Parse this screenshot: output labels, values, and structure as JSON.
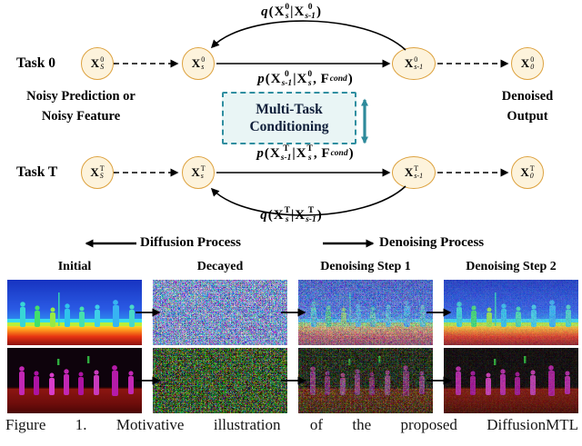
{
  "diagram": {
    "task0_label": "Task 0",
    "taskT_label": "Task T",
    "left_note": {
      "line1": "Noisy Prediction or",
      "line2": "Noisy Feature"
    },
    "right_note": {
      "line1": "Denoised",
      "line2": "Output"
    },
    "conditioning_box": {
      "line1": "Multi-Task",
      "line2": "Conditioning"
    },
    "nodes": {
      "task0": [
        {
          "t": "X",
          "sup": "0",
          "sub": "S"
        },
        {
          "t": "X",
          "sup": "0",
          "sub": "s"
        },
        {
          "t": "X",
          "sup": "0",
          "sub": "s-1"
        },
        {
          "t": "X",
          "sup": "0",
          "sub": "0"
        }
      ],
      "taskT": [
        {
          "t": "X",
          "sup": "T",
          "sub": "S"
        },
        {
          "t": "X",
          "sup": "T",
          "sub": "s"
        },
        {
          "t": "X",
          "sup": "T",
          "sub": "s-1"
        },
        {
          "t": "X",
          "sup": "T",
          "sub": "0"
        }
      ]
    },
    "formulas": {
      "q_task0": [
        {
          "t": "q",
          "i": true
        },
        {
          "t": "("
        },
        {
          "t": "X",
          "sup": "0",
          "sub": "s"
        },
        {
          "t": "|"
        },
        {
          "t": "X",
          "sup": "0",
          "sub": "s-1"
        },
        {
          "t": ")"
        }
      ],
      "p_task0": [
        {
          "t": "p",
          "i": true
        },
        {
          "t": "("
        },
        {
          "t": "X",
          "sup": "0",
          "sub": "s-1"
        },
        {
          "t": "|"
        },
        {
          "t": "X",
          "sup": "0",
          "sub": "s"
        },
        {
          "t": ", "
        },
        {
          "t": "F",
          "sub": "cond"
        },
        {
          "t": ")"
        }
      ],
      "p_taskT": [
        {
          "t": "p",
          "i": true
        },
        {
          "t": "("
        },
        {
          "t": "X",
          "sup": "T",
          "sub": "s-1"
        },
        {
          "t": "|"
        },
        {
          "t": "X",
          "sup": "T",
          "sub": "s"
        },
        {
          "t": ", "
        },
        {
          "t": "F",
          "sub": "cond"
        },
        {
          "t": ")"
        }
      ],
      "q_taskT": [
        {
          "t": "q",
          "i": true
        },
        {
          "t": "("
        },
        {
          "t": "X",
          "sup": "T",
          "sub": "s"
        },
        {
          "t": "|"
        },
        {
          "t": "X",
          "sup": "T",
          "sub": "s-1"
        },
        {
          "t": ")"
        }
      ]
    }
  },
  "legend": {
    "diffusion": "Diffusion Process",
    "denoising": "Denoising Process"
  },
  "grid": {
    "columns": [
      "Initial",
      "Decayed",
      "Denoising Step 1",
      "Denoising Step 2"
    ]
  },
  "caption": "Figure 1. Motivative illustration of the proposed DiffusionMTL",
  "colors": {
    "node_fill": "#fdf3dc",
    "node_border": "#dda23f",
    "teal_accent": "#2e8a9b",
    "box_fill": "#e9f5f5",
    "box_border": "#2f8ea0"
  }
}
